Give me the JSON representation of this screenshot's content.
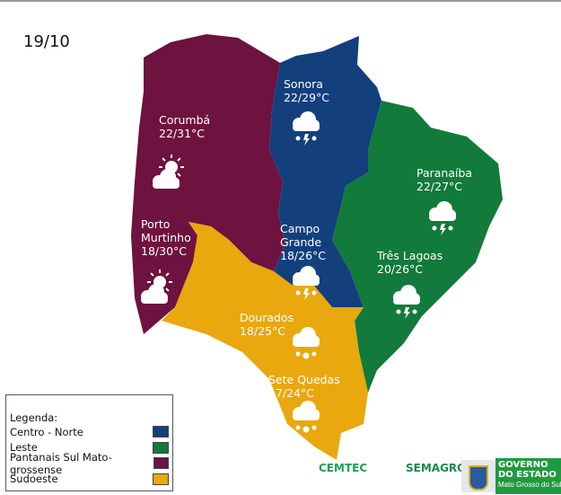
{
  "date": "19/10",
  "colors": {
    "centro_norte": "#133f7d",
    "leste": "#127a3a",
    "pantanal": "#6e1240",
    "sudoeste": "#e8a80e"
  },
  "cities": [
    {
      "name": "Corumbá",
      "temp": "22/31°C",
      "icon": "partly-cloudy-sun-icon"
    },
    {
      "name": "Porto Murtinho",
      "temp": "18/30°C",
      "icon": "partly-cloudy-sun-icon"
    },
    {
      "name": "Sonora",
      "temp": "22/29°C",
      "icon": "thunderstorm-rain-icon"
    },
    {
      "name": "Campo Grande",
      "temp": "18/26°C",
      "icon": "thunderstorm-rain-icon"
    },
    {
      "name": "Paranaíba",
      "temp": "22/27°C",
      "icon": "thunderstorm-rain-icon"
    },
    {
      "name": "Três Lagoas",
      "temp": "20/26°C",
      "icon": "thunderstorm-rain-icon"
    },
    {
      "name": "Dourados",
      "temp": "18/25°C",
      "icon": "rain-cloud-icon"
    },
    {
      "name": "Sete Quedas",
      "temp": "17/24°C",
      "icon": "rain-cloud-icon"
    }
  ],
  "legend": {
    "title": "Legenda:",
    "items": [
      {
        "label": "Centro - Norte",
        "color": "#133f7d"
      },
      {
        "label": "Leste",
        "color": "#127a3a"
      },
      {
        "label": "Pantanais Sul Mato-grossense",
        "color": "#6e1240"
      },
      {
        "label": "Sudoeste",
        "color": "#e8a80e"
      }
    ]
  },
  "logos": {
    "cemtec": "CEMTEC",
    "semagro": "SEMAGRO",
    "governo_line1": "GOVERNO",
    "governo_line2": "DO ESTADO",
    "governo_line3": "Mato Grosso do Sul"
  }
}
